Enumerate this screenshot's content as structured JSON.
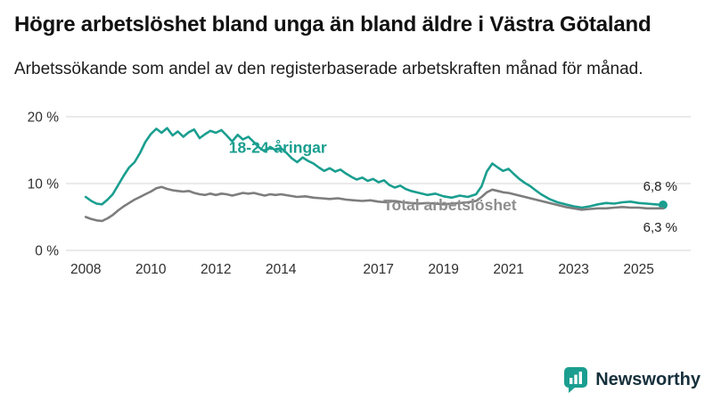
{
  "page": {
    "title": "Högre arbetslöshet bland unga än bland äldre i Västra Götaland",
    "subtitle": "Arbetssökande som andel av den registerbaserade arbetskraften månad för månad."
  },
  "branding": {
    "logo_text": "Newsworthy",
    "logo_color": "#1a9e8f",
    "logo_text_color": "#16303c"
  },
  "chart_data": {
    "type": "line",
    "title": "Högre arbetslöshet bland unga än bland äldre i Västra Götaland",
    "xlabel": "",
    "ylabel": "",
    "xlim": [
      2007.5,
      2026.6
    ],
    "ylim": [
      0,
      20
    ],
    "grid": "horizontal",
    "legend_position": "inline-labels",
    "y_ticks": [
      {
        "value": 0,
        "label": "0 %"
      },
      {
        "value": 10,
        "label": "10 %"
      },
      {
        "value": 20,
        "label": "20 %"
      }
    ],
    "x_ticks": [
      {
        "value": 2008,
        "label": "2008"
      },
      {
        "value": 2010,
        "label": "2010"
      },
      {
        "value": 2012,
        "label": "2012"
      },
      {
        "value": 2014,
        "label": "2014"
      },
      {
        "value": 2017,
        "label": "2017"
      },
      {
        "value": 2019,
        "label": "2019"
      },
      {
        "value": 2021,
        "label": "2021"
      },
      {
        "value": 2023,
        "label": "2023"
      },
      {
        "value": 2025,
        "label": "2025"
      }
    ],
    "series": [
      {
        "name": "18-24-åringar",
        "color": "#1a9e8f",
        "label_color": "#1a9e8f",
        "label_pos": {
          "x": 2012.4,
          "y": 14.6
        },
        "end_dot": true,
        "end_label": "6,8 %",
        "end_label_dy": -16,
        "points": [
          [
            2008.0,
            8.0
          ],
          [
            2008.17,
            7.4
          ],
          [
            2008.33,
            7.0
          ],
          [
            2008.5,
            6.9
          ],
          [
            2008.67,
            7.6
          ],
          [
            2008.83,
            8.4
          ],
          [
            2009.0,
            9.8
          ],
          [
            2009.17,
            11.2
          ],
          [
            2009.33,
            12.4
          ],
          [
            2009.5,
            13.2
          ],
          [
            2009.67,
            14.6
          ],
          [
            2009.83,
            16.2
          ],
          [
            2010.0,
            17.4
          ],
          [
            2010.17,
            18.2
          ],
          [
            2010.33,
            17.6
          ],
          [
            2010.5,
            18.3
          ],
          [
            2010.67,
            17.2
          ],
          [
            2010.83,
            17.8
          ],
          [
            2011.0,
            17.0
          ],
          [
            2011.17,
            17.7
          ],
          [
            2011.33,
            18.1
          ],
          [
            2011.5,
            16.8
          ],
          [
            2011.67,
            17.4
          ],
          [
            2011.83,
            17.9
          ],
          [
            2012.0,
            17.6
          ],
          [
            2012.17,
            18.0
          ],
          [
            2012.33,
            17.2
          ],
          [
            2012.5,
            16.3
          ],
          [
            2012.67,
            17.3
          ],
          [
            2012.83,
            16.6
          ],
          [
            2013.0,
            17.0
          ],
          [
            2013.17,
            16.2
          ],
          [
            2013.33,
            15.4
          ],
          [
            2013.5,
            14.8
          ],
          [
            2013.67,
            15.5
          ],
          [
            2013.83,
            15.0
          ],
          [
            2014.0,
            15.3
          ],
          [
            2014.17,
            14.6
          ],
          [
            2014.33,
            13.8
          ],
          [
            2014.5,
            13.2
          ],
          [
            2014.67,
            13.9
          ],
          [
            2014.83,
            13.4
          ],
          [
            2015.0,
            13.0
          ],
          [
            2015.17,
            12.4
          ],
          [
            2015.33,
            11.9
          ],
          [
            2015.5,
            12.3
          ],
          [
            2015.67,
            11.8
          ],
          [
            2015.83,
            12.1
          ],
          [
            2016.0,
            11.5
          ],
          [
            2016.17,
            11.0
          ],
          [
            2016.33,
            10.6
          ],
          [
            2016.5,
            10.9
          ],
          [
            2016.67,
            10.4
          ],
          [
            2016.83,
            10.7
          ],
          [
            2017.0,
            10.2
          ],
          [
            2017.17,
            10.5
          ],
          [
            2017.33,
            9.8
          ],
          [
            2017.5,
            9.4
          ],
          [
            2017.67,
            9.7
          ],
          [
            2017.83,
            9.2
          ],
          [
            2018.0,
            8.9
          ],
          [
            2018.25,
            8.6
          ],
          [
            2018.5,
            8.3
          ],
          [
            2018.75,
            8.5
          ],
          [
            2019.0,
            8.1
          ],
          [
            2019.25,
            7.9
          ],
          [
            2019.5,
            8.2
          ],
          [
            2019.75,
            8.0
          ],
          [
            2020.0,
            8.4
          ],
          [
            2020.17,
            9.6
          ],
          [
            2020.33,
            11.8
          ],
          [
            2020.5,
            13.0
          ],
          [
            2020.67,
            12.4
          ],
          [
            2020.83,
            11.9
          ],
          [
            2021.0,
            12.2
          ],
          [
            2021.17,
            11.4
          ],
          [
            2021.33,
            10.7
          ],
          [
            2021.5,
            10.1
          ],
          [
            2021.67,
            9.6
          ],
          [
            2021.83,
            9.0
          ],
          [
            2022.0,
            8.4
          ],
          [
            2022.25,
            7.7
          ],
          [
            2022.5,
            7.2
          ],
          [
            2022.75,
            6.9
          ],
          [
            2023.0,
            6.6
          ],
          [
            2023.25,
            6.4
          ],
          [
            2023.5,
            6.6
          ],
          [
            2023.75,
            6.9
          ],
          [
            2024.0,
            7.1
          ],
          [
            2024.25,
            7.0
          ],
          [
            2024.5,
            7.2
          ],
          [
            2024.75,
            7.3
          ],
          [
            2025.0,
            7.1
          ],
          [
            2025.25,
            7.0
          ],
          [
            2025.5,
            6.9
          ],
          [
            2025.75,
            6.8
          ]
        ]
      },
      {
        "name": "Total arbetslöshet",
        "color": "#7d7d7d",
        "label_color": "#8e8e8e",
        "label_pos": {
          "x": 2017.15,
          "y": 6.0
        },
        "end_dot": false,
        "end_label": "6,3 %",
        "end_label_dy": 26,
        "points": [
          [
            2008.0,
            5.0
          ],
          [
            2008.17,
            4.7
          ],
          [
            2008.33,
            4.5
          ],
          [
            2008.5,
            4.4
          ],
          [
            2008.67,
            4.8
          ],
          [
            2008.83,
            5.3
          ],
          [
            2009.0,
            6.0
          ],
          [
            2009.17,
            6.6
          ],
          [
            2009.33,
            7.1
          ],
          [
            2009.5,
            7.6
          ],
          [
            2009.67,
            8.0
          ],
          [
            2009.83,
            8.4
          ],
          [
            2010.0,
            8.8
          ],
          [
            2010.17,
            9.3
          ],
          [
            2010.33,
            9.5
          ],
          [
            2010.5,
            9.2
          ],
          [
            2010.67,
            9.0
          ],
          [
            2010.83,
            8.9
          ],
          [
            2011.0,
            8.8
          ],
          [
            2011.17,
            8.9
          ],
          [
            2011.33,
            8.6
          ],
          [
            2011.5,
            8.4
          ],
          [
            2011.67,
            8.3
          ],
          [
            2011.83,
            8.5
          ],
          [
            2012.0,
            8.3
          ],
          [
            2012.17,
            8.5
          ],
          [
            2012.33,
            8.4
          ],
          [
            2012.5,
            8.2
          ],
          [
            2012.67,
            8.4
          ],
          [
            2012.83,
            8.6
          ],
          [
            2013.0,
            8.5
          ],
          [
            2013.17,
            8.6
          ],
          [
            2013.33,
            8.4
          ],
          [
            2013.5,
            8.2
          ],
          [
            2013.67,
            8.4
          ],
          [
            2013.83,
            8.3
          ],
          [
            2014.0,
            8.4
          ],
          [
            2014.25,
            8.2
          ],
          [
            2014.5,
            8.0
          ],
          [
            2014.75,
            8.1
          ],
          [
            2015.0,
            7.9
          ],
          [
            2015.25,
            7.8
          ],
          [
            2015.5,
            7.7
          ],
          [
            2015.75,
            7.8
          ],
          [
            2016.0,
            7.6
          ],
          [
            2016.25,
            7.5
          ],
          [
            2016.5,
            7.4
          ],
          [
            2016.75,
            7.5
          ],
          [
            2017.0,
            7.3
          ],
          [
            2017.25,
            7.2
          ],
          [
            2017.5,
            7.4
          ],
          [
            2017.75,
            7.2
          ],
          [
            2018.0,
            7.1
          ],
          [
            2018.25,
            7.0
          ],
          [
            2018.5,
            7.1
          ],
          [
            2018.75,
            7.0
          ],
          [
            2019.0,
            6.9
          ],
          [
            2019.25,
            7.0
          ],
          [
            2019.5,
            7.1
          ],
          [
            2019.75,
            7.2
          ],
          [
            2020.0,
            7.4
          ],
          [
            2020.17,
            8.0
          ],
          [
            2020.33,
            8.7
          ],
          [
            2020.5,
            9.1
          ],
          [
            2020.67,
            8.9
          ],
          [
            2020.83,
            8.7
          ],
          [
            2021.0,
            8.6
          ],
          [
            2021.25,
            8.3
          ],
          [
            2021.5,
            8.0
          ],
          [
            2021.75,
            7.7
          ],
          [
            2022.0,
            7.4
          ],
          [
            2022.25,
            7.1
          ],
          [
            2022.5,
            6.8
          ],
          [
            2022.75,
            6.5
          ],
          [
            2023.0,
            6.3
          ],
          [
            2023.25,
            6.1
          ],
          [
            2023.5,
            6.2
          ],
          [
            2023.75,
            6.3
          ],
          [
            2024.0,
            6.3
          ],
          [
            2024.25,
            6.4
          ],
          [
            2024.5,
            6.5
          ],
          [
            2024.75,
            6.4
          ],
          [
            2025.0,
            6.4
          ],
          [
            2025.25,
            6.3
          ],
          [
            2025.5,
            6.3
          ],
          [
            2025.75,
            6.3
          ]
        ]
      }
    ]
  }
}
